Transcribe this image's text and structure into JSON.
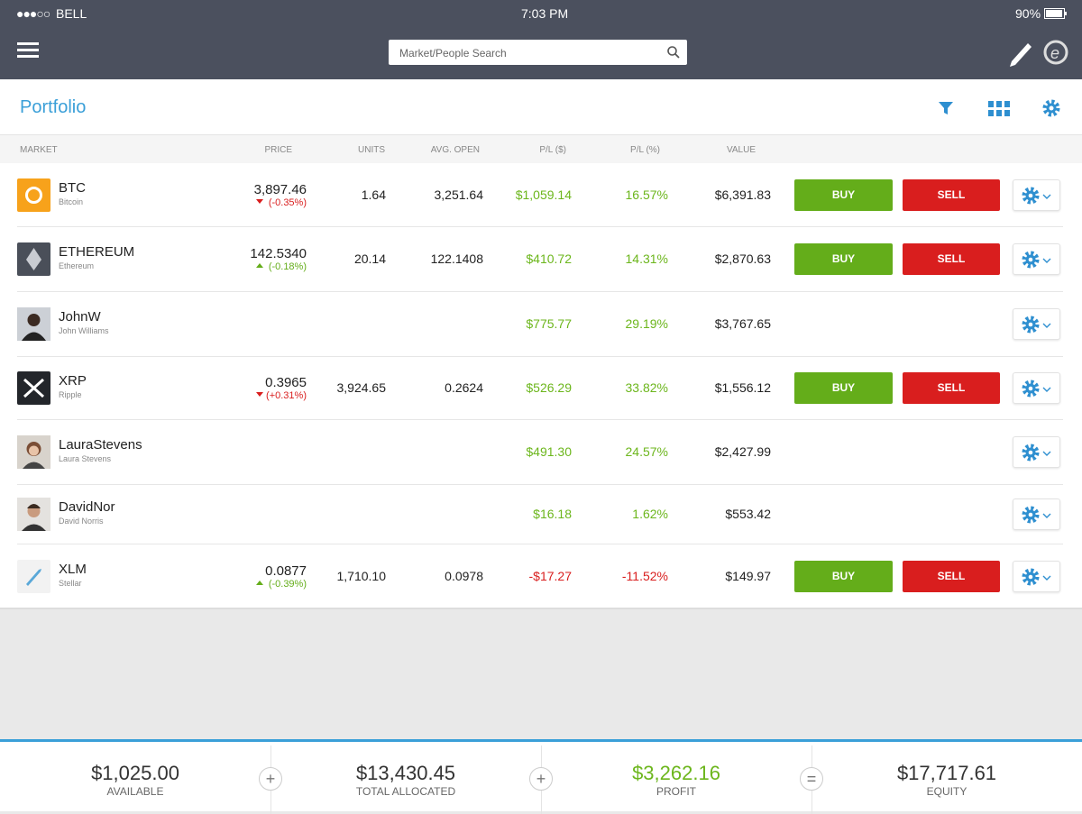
{
  "status": {
    "carrier": "BELL",
    "time": "7:03 PM",
    "battery": "90%"
  },
  "search": {
    "placeholder": "Market/People Search"
  },
  "header": {
    "title": "Portfolio"
  },
  "columns": [
    "MARKET",
    "PRICE",
    "UNITS",
    "AVG. OPEN",
    "P/L ($)",
    "P/L (%)",
    "VALUE"
  ],
  "rows": [
    {
      "name": "BTC",
      "subtitle": "Bitcoin",
      "price": "3,897.46",
      "change": "(-0.35%)",
      "change_direction": "down",
      "units": "1.64",
      "avg_open": "3,251.64",
      "pl_usd": "$1,059.14",
      "pl_pct": "16.57%",
      "value": "$6,391.83",
      "buy": "BUY",
      "sell": "SELL"
    },
    {
      "name": "ETHEREUM",
      "subtitle": "Ethereum",
      "price": "142.5340",
      "change": "(-0.18%)",
      "change_direction": "up",
      "units": "20.14",
      "avg_open": "122.1408",
      "pl_usd": "$410.72",
      "pl_pct": "14.31%",
      "value": "$2,870.63",
      "buy": "BUY",
      "sell": "SELL"
    },
    {
      "name": "JohnW",
      "subtitle": "John Williams",
      "pl_usd": "$775.77",
      "pl_pct": "29.19%",
      "value": "$3,767.65"
    },
    {
      "name": "XRP",
      "subtitle": "Ripple",
      "price": "0.3965",
      "change": "(+0.31%)",
      "change_direction": "down",
      "units": "3,924.65",
      "avg_open": "0.2624",
      "pl_usd": "$526.29",
      "pl_pct": "33.82%",
      "value": "$1,556.12",
      "buy": "BUY",
      "sell": "SELL"
    },
    {
      "name": "LauraStevens",
      "subtitle": "Laura Stevens",
      "pl_usd": "$491.30",
      "pl_pct": "24.57%",
      "value": "$2,427.99"
    },
    {
      "name": "DavidNor",
      "subtitle": "David Norris",
      "pl_usd": "$16.18",
      "pl_pct": "1.62%",
      "value": "$553.42"
    },
    {
      "name": "XLM",
      "subtitle": "Stellar",
      "price": "0.0877",
      "change": "(-0.39%)",
      "change_direction": "up",
      "units": "1,710.10",
      "avg_open": "0.0978",
      "pl_usd": "-$17.27",
      "pl_pct": "-11.52%",
      "value": "$149.97",
      "buy": "BUY",
      "sell": "SELL"
    }
  ],
  "footer": [
    {
      "value": "$1,025.00",
      "label": "AVAILABLE"
    },
    {
      "value": "$13,430.45",
      "label": "TOTAL ALLOCATED"
    },
    {
      "value": "$3,262.16",
      "label": "PROFIT"
    },
    {
      "value": "$17,717.61",
      "label": "EQUITY"
    }
  ]
}
